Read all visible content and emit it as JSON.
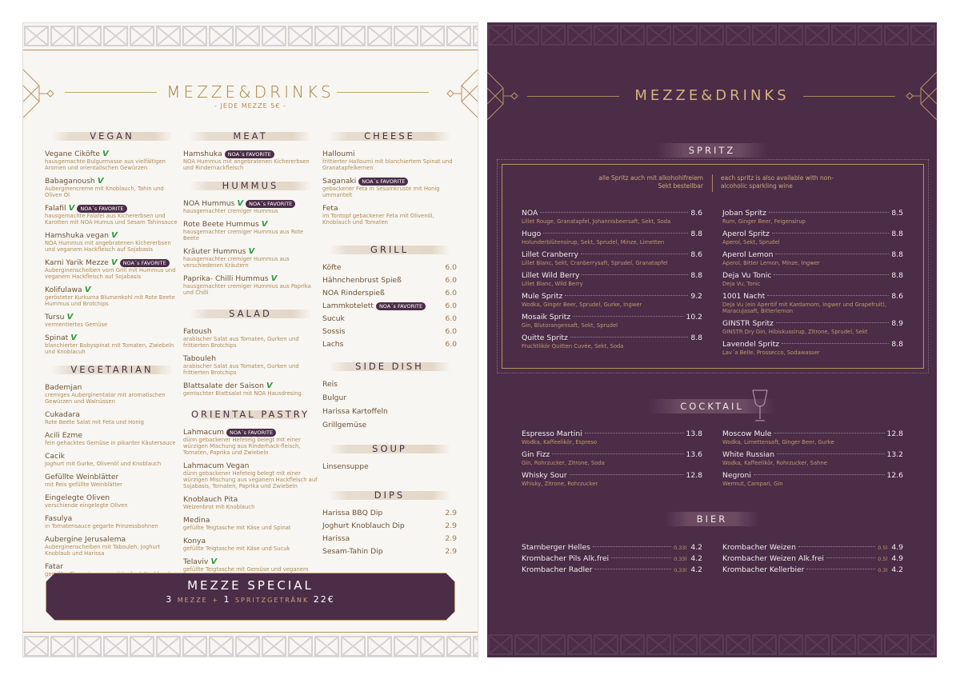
{
  "left": {
    "title": "MEZZE&DRINKS",
    "subtitle": "- JEDE MEZZE 5€ -",
    "fav_label": "NOA´s FAVORITE",
    "vegan_mark": "V",
    "colors": {
      "purple": "#4b2d48",
      "gold": "#b08a55",
      "vegan": "#2f9a3a"
    },
    "columns": [
      [
        {
          "title": "VEGAN",
          "items": [
            {
              "name": "Vegane Ciköfte",
              "vegan": true,
              "desc": "hausgemachte Bulgurmasse aus vielfältigen Aromen und orientalischen Gewürzen"
            },
            {
              "name": "Babaganoush",
              "vegan": true,
              "desc": "Auberginencreme mit Knoblauch, Tahin und Oliven Öl"
            },
            {
              "name": "Falafil",
              "vegan": true,
              "fav": true,
              "desc": "hausgemachte Falafel aus Kichererbsen und Karotten mit NOA Humus und Sesam Tahinsauce"
            },
            {
              "name": "Hamshuka vegan",
              "vegan": true,
              "desc": "NOA Hummus mit angebratenen Kichererbsen und veganem Hackfleisch auf Sojabasis"
            },
            {
              "name": "Karni Yarik Mezze",
              "vegan": true,
              "fav": true,
              "desc": "Auberginenscheiben vom Grill mit Hummus und veganem Hackfleisch auf Sojabasis"
            },
            {
              "name": "Kolifulawa",
              "vegan": true,
              "desc": "gerösteter Kurkuma Blumenkohl mit Rote Beete Hummus und Brotchips"
            },
            {
              "name": "Tursu",
              "vegan": true,
              "desc": "vermentiertes Gemüse"
            },
            {
              "name": "Spinat",
              "vegan": true,
              "desc": "blanchierter Babyspinat mit Tomaten, Zwiebeln und Knoblacuh"
            }
          ]
        },
        {
          "title": "VEGETARIAN",
          "items": [
            {
              "name": "Bademjan",
              "desc": "cremiges Auberginentatar mit aromatischen Gewürzen und Walnüssen"
            },
            {
              "name": "Cukadara",
              "desc": "Rote Beete Salat mit Feta und Honig"
            },
            {
              "name": "Acili Ezme",
              "desc": "fein gehacktes Gemüse in pikanter Käutersauce"
            },
            {
              "name": "Cacik",
              "desc": "Joghurt mit Gurke, Olivenöl und Knoblauch"
            },
            {
              "name": "Gefüllte Weinblätter",
              "desc": "mit Reis gefüllte Weinblätter"
            },
            {
              "name": "Eingelegte Oliven",
              "desc": "verschiende eingelegte Oliven"
            },
            {
              "name": "Fasulya",
              "desc": "in Tomatensauce gegarte Prinzessbohnen"
            },
            {
              "name": "Aubergine Jerusalema",
              "desc": "Auberginenscheiben mit Tabouleh, Joghurt Knoblaub und Harissa"
            },
            {
              "name": "Fatar",
              "desc": "gegrillte Champignongs mit Joghurt Knoblauch"
            }
          ]
        }
      ],
      [
        {
          "title": "MEAT",
          "items": [
            {
              "name": "Hamshuka",
              "fav": true,
              "desc": "NOA Hummus mit angebratenen Kichererbsen und Rindernackfleisch"
            }
          ]
        },
        {
          "title": "HUMMUS",
          "items": [
            {
              "name": "NOA Hummus",
              "vegan": true,
              "fav": true,
              "desc": "hausgemachter cremiger Hummus"
            },
            {
              "name": "Rote Beete Hummus",
              "vegan": true,
              "desc": "hausgemachter cremiger Hummus aus Rote Beete"
            },
            {
              "name": "Kräuter Hummus",
              "vegan": true,
              "desc": "hausgemachter cremiger Hummus aus verschiedenen Kräutern"
            },
            {
              "name": "Paprika- Chilli Hummus",
              "vegan": true,
              "desc": "hausgemachter cremiger Hummus aus Paprika und Chilli"
            }
          ]
        },
        {
          "title": "SALAD",
          "items": [
            {
              "name": "Fatoush",
              "desc": "arabischer Salat aus Tomaten, Gurken und frittierten Brotchips"
            },
            {
              "name": "Tabouleh",
              "desc": "arabischer Salat aus Tomaten, Gurken und frittierten Brotchips"
            },
            {
              "name": "Blattsalate der Saison",
              "vegan": true,
              "desc": "gemischter Blattsalat mit NOA Hausdresing"
            }
          ]
        },
        {
          "title": "ORIENTAL PASTRY",
          "items": [
            {
              "name": "Lahmacum",
              "fav": true,
              "desc": "dünn gebackener Hefeteig belegt mit einer würzigen Mischung aus Rinderhack-fleisch, Tomaten, Paprika und Zwiebeln"
            },
            {
              "name": "Lahmacum Vegan",
              "desc": "dünn gebackener Hefeteig belegt mit einer würzigen Mischung aus veganem Hackfleisch auf Sojabasis, Tomaten, Paprika und Zwiebeln"
            },
            {
              "name": "Knoblauch Pita",
              "desc": "Weizenbrot mit Knoblauch"
            },
            {
              "name": "Medina",
              "desc": "gefüllte Teigtasche mit Käse und Spinat"
            },
            {
              "name": "Konya",
              "desc": "gefüllte Teigtasche mit Käse und Sucuk"
            },
            {
              "name": "Telaviv",
              "vegan": true,
              "desc": "gefüllte Teigtasche mit Gemüse und veganem Käse"
            }
          ]
        }
      ],
      [
        {
          "title": "CHEESE",
          "items": [
            {
              "name": "Halloumi",
              "desc": "frittierter Halloumi mit blanchiertem Spinat und Granatapfelkernen"
            },
            {
              "name": "Saganaki",
              "fav": true,
              "desc": "gebackener Feta in Sesamkruste mit Honig ummantelt"
            },
            {
              "name": "Feta",
              "desc": "im Tontopf gebackener Feta mit Olivenöl, Knoblauch und Tomaten"
            }
          ]
        },
        {
          "title": "GRILL",
          "simple": true,
          "items": [
            {
              "name": "Köfte",
              "price": "6.0"
            },
            {
              "name": "Hähnchenbrust Spieß",
              "price": "6.0"
            },
            {
              "name": "NOA Rinderspieß",
              "price": "6.0"
            },
            {
              "name": "Lammkotelett",
              "fav": true,
              "price": "6.0"
            },
            {
              "name": "Sucuk",
              "price": "6.0"
            },
            {
              "name": "Sossis",
              "price": "6.0"
            },
            {
              "name": "Lachs",
              "price": "6.0"
            }
          ]
        },
        {
          "title": "SIDE DISH",
          "simple": true,
          "items": [
            {
              "name": "Reis"
            },
            {
              "name": "Bulgur"
            },
            {
              "name": "Harissa Kartoffeln"
            },
            {
              "name": "Grillgemüse"
            }
          ]
        },
        {
          "title": "SOUP",
          "simple": true,
          "items": [
            {
              "name": "Linsensuppe"
            }
          ]
        },
        {
          "title": "DIPS",
          "simple": true,
          "items": [
            {
              "name": "Harissa BBQ Dip",
              "price": "2.9"
            },
            {
              "name": "Joghurt Knoblauch Dip",
              "price": "2.9"
            },
            {
              "name": "Harissa",
              "price": "2.9"
            },
            {
              "name": "Sesam-Tahin Dip",
              "price": "2.9"
            }
          ]
        }
      ]
    ],
    "special": {
      "title": "MEZZE SPECIAL",
      "n1": "3",
      "t1": "MEZZE",
      "plus": "+",
      "n2": "1",
      "t2": "SPRITZGETRÄNK",
      "price": "22€"
    }
  },
  "right": {
    "title": "MEZZE&DRINKS",
    "spritz": {
      "title": "SPRITZ",
      "note_de": "alle Spritz auch mit alkohohlfreiem Sekt bestellbar",
      "note_en": "each spritz is also available with non-alcoholic sparkling wine",
      "left": [
        {
          "name": "NOA",
          "price": "8.6",
          "desc": "Lillet Rouge, Granatapfel, Johannisbeersaft, Sekt, Soda"
        },
        {
          "name": "Hugo",
          "price": "8.8",
          "desc": "Holunderblütensirup, Sekt, Sprudel, Minze, Limetten"
        },
        {
          "name": "Lillet Cranberry",
          "price": "8.6",
          "desc": "Lillet Blanc, Sekt, Cranberrysaft, Sprudel, Granatapfel"
        },
        {
          "name": "Lillet Wild Berry",
          "price": "8.8",
          "desc": "Lillet Blanc, Wild Berry"
        },
        {
          "name": "Mule Spritz",
          "price": "9.2",
          "desc": "Wodka, Ginger Beer, Sprudel, Gurke, Ingwer"
        },
        {
          "name": "Mosaik Spritz",
          "price": "10.2",
          "desc": "Gin, Blutorangensaft, Sekt, Sprudel"
        },
        {
          "name": "Quitte Spritz",
          "price": "8.8",
          "desc": "Fruchtlikör Quitten Cuvée, Sekt, Soda"
        }
      ],
      "right": [
        {
          "name": "Joban Spritz",
          "price": "8.5",
          "desc": "Rum, Ginger Beer, Feigensirup"
        },
        {
          "name": "Aperol Spritz",
          "price": "8.8",
          "desc": "Aperol, Sekt, Sprudel"
        },
        {
          "name": "Aperol Lemon",
          "price": "8.8",
          "desc": "Aperol, Bitter Lemon, Minze, Ingwer"
        },
        {
          "name": "Deja Vu Tonic",
          "price": "8.8",
          "desc": "Deja Vu, Tonic"
        },
        {
          "name": "1001 Nacht",
          "price": "8.6",
          "desc": "Deja Vu (ein Aperitif mit Kardamom, Ingwer und Grapefruit), Maracujasaft, Bitterlemon"
        },
        {
          "name": "GINSTR Spritz",
          "price": "8.9",
          "desc": "GINSTR Dry Gin, Hibiskussirup, Zitrone, Sprudel, Sekt"
        },
        {
          "name": "Lavendel Spritz",
          "price": "8.8",
          "desc": "Lav´a Belle, Prossecco, Sodawasser"
        }
      ]
    },
    "cocktail": {
      "title": "COCKTAIL",
      "left": [
        {
          "name": "Espresso Martini",
          "price": "13.8",
          "desc": "Wodka, Kaffeelikör, Espreso"
        },
        {
          "name": "Gin Fizz",
          "price": "13.6",
          "desc": "Gin, Rohrzucker, Zitrone, Soda"
        },
        {
          "name": "Whisky Sour",
          "price": "12.8",
          "desc": "Whisky, Zitrone, Rohrzucker"
        }
      ],
      "right": [
        {
          "name": "Moscow Mule",
          "price": "12.8",
          "desc": "Wodka, Limettensaft, Ginger Beer, Gurke"
        },
        {
          "name": "White Russian",
          "price": "13.2",
          "desc": "Wodka, Kaffeelikör, Rohrzucker, Sahne"
        },
        {
          "name": "Negroni",
          "price": "12.6",
          "desc": "Wermut, Campari, Gin"
        }
      ]
    },
    "bier": {
      "title": "BIER",
      "left": [
        {
          "name": "Starnberger Helles",
          "vol": "0.33l",
          "price": "4.2"
        },
        {
          "name": "Krombacher Pils Alk.frei",
          "vol": "0.33l",
          "price": "4.2"
        },
        {
          "name": "Krombacher Radler",
          "vol": "0.33l",
          "price": "4.2"
        }
      ],
      "right": [
        {
          "name": "Krombacher Weizen",
          "vol": "0.5l",
          "price": "4.9"
        },
        {
          "name": "Krombacher Weizen Alk.frei",
          "vol": "0.5l",
          "price": "4.9"
        },
        {
          "name": "Krombacher Kellerbier",
          "vol": "0.3l",
          "price": "4.2"
        }
      ]
    }
  }
}
